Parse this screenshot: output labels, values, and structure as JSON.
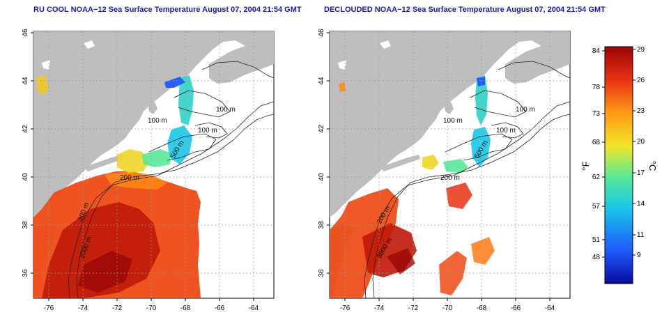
{
  "panels": [
    {
      "title": "RU COOL NOAA−12 Sea Surface Temperature August 07, 2004 21:54 GMT",
      "x_ticks": [
        "-76",
        "-74",
        "-72",
        "-70",
        "-68",
        "-66",
        "-64"
      ],
      "y_ticks": [
        "46",
        "44",
        "42",
        "40",
        "38",
        "36"
      ],
      "contour_labels": [
        "100 m",
        "100 m",
        "200 m",
        "500 m",
        "100 m",
        "200 m",
        "3000 m"
      ]
    },
    {
      "title": "DECLOUDED NOAA−12 Sea Surface Temperature August 07, 2004 21:54 GMT",
      "x_ticks": [
        "-76",
        "-74",
        "-72",
        "-70",
        "-68",
        "-66",
        "-64"
      ],
      "y_ticks": [
        "46",
        "44",
        "42",
        "40",
        "38",
        "36"
      ],
      "contour_labels": [
        "100 m",
        "100 m",
        "200 m",
        "500 m",
        "200 m",
        "100 m",
        "3000 m"
      ]
    }
  ],
  "colorbar": {
    "fahrenheit_label": "°F",
    "celsius_label": "°C",
    "fahrenheit_ticks": [
      "84",
      "78",
      "73",
      "68",
      "62",
      "57",
      "51",
      "48"
    ],
    "celsius_ticks": [
      "29",
      "26",
      "23",
      "20",
      "17",
      "14",
      "11",
      "9"
    ],
    "colors": [
      "#0a0a9a",
      "#1e5aff",
      "#18c8e8",
      "#58e898",
      "#f0e628",
      "#ff9a14",
      "#e83214",
      "#9a0606"
    ]
  },
  "colors": {
    "land": "#bebebe",
    "ocean_no_data": "#ffffff",
    "title": "#1a1aa6"
  }
}
